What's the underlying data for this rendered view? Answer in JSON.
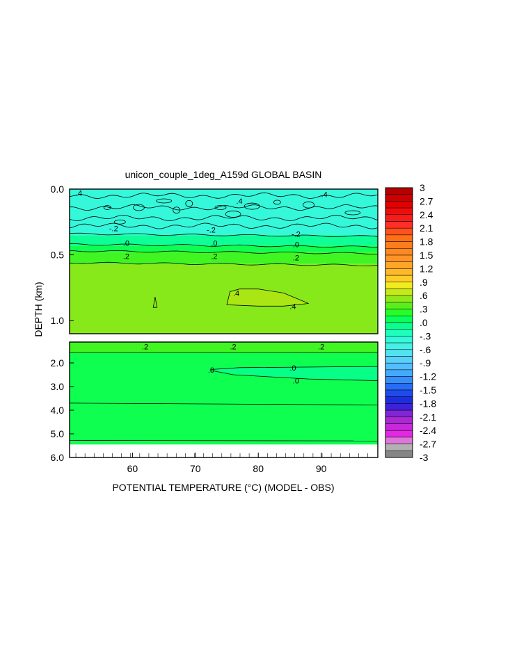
{
  "chart_data": {
    "type": "heatmap",
    "title": "unicon_couple_1deg_A159d GLOBAL BASIN",
    "xlabel": "POTENTIAL TEMPERATURE (°C) (MODEL - OBS)",
    "ylabel": "DEPTH (km)",
    "x_ticks": [
      "60",
      "70",
      "80",
      "90"
    ],
    "x_tick_values": [
      60,
      70,
      80,
      90
    ],
    "xlim": [
      50,
      99
    ],
    "upper_panel": {
      "ylim": [
        0.0,
        1.1
      ],
      "y_ticks": [
        "0.0",
        "0.5",
        "1.0"
      ],
      "y_tick_values": [
        0.0,
        0.5,
        1.0
      ],
      "bands": [
        {
          "from": 0.0,
          "to": 0.35,
          "value": -0.4
        },
        {
          "from": 0.35,
          "to": 0.43,
          "value": -0.1
        },
        {
          "from": 0.43,
          "to": 0.48,
          "value": 0.1
        },
        {
          "from": 0.48,
          "to": 0.57,
          "value": 0.3
        },
        {
          "from": 0.57,
          "to": 1.1,
          "value": 0.5
        }
      ],
      "patch": {
        "value": 0.6,
        "outline": [
          [
            75.5,
            0.78
          ],
          [
            77,
            0.76
          ],
          [
            80,
            0.76
          ],
          [
            84,
            0.79
          ],
          [
            88,
            0.87
          ],
          [
            84,
            0.89
          ],
          [
            80,
            0.89
          ],
          [
            75,
            0.88
          ]
        ]
      },
      "contour_labels": [
        {
          "text": ".4",
          "x": 51.5,
          "y": 0.03
        },
        {
          "text": ".4",
          "x": 77,
          "y": 0.09
        },
        {
          "text": ".4",
          "x": 90.5,
          "y": 0.04
        },
        {
          "text": "-.2",
          "x": 57,
          "y": 0.3
        },
        {
          "text": "-.2",
          "x": 72.5,
          "y": 0.31
        },
        {
          "text": "-.2",
          "x": 86,
          "y": 0.34
        },
        {
          "text": ".0",
          "x": 59,
          "y": 0.41
        },
        {
          "text": ".0",
          "x": 73,
          "y": 0.41
        },
        {
          "text": ".0",
          "x": 86,
          "y": 0.42
        },
        {
          "text": ".2",
          "x": 59,
          "y": 0.51
        },
        {
          "text": ".2",
          "x": 73,
          "y": 0.51
        },
        {
          "text": ".2",
          "x": 86,
          "y": 0.52
        },
        {
          "text": ".4",
          "x": 76.5,
          "y": 0.79
        },
        {
          "text": ".4",
          "x": 85.5,
          "y": 0.89
        }
      ]
    },
    "lower_panel": {
      "ylim": [
        1.1,
        6.0
      ],
      "y_ticks": [
        "2.0",
        "3.0",
        "4.0",
        "5.0",
        "6.0"
      ],
      "y_tick_values": [
        2.0,
        3.0,
        4.0,
        5.0,
        6.0
      ],
      "bands": [
        {
          "from": 1.1,
          "to": 1.55,
          "value": 0.3
        },
        {
          "from": 1.55,
          "to": 5.3,
          "value": 0.1
        },
        {
          "from": 5.3,
          "to": 5.45,
          "value": 0.1
        }
      ],
      "contour_labels": [
        {
          "text": ".2",
          "x": 62,
          "y": 1.3
        },
        {
          "text": ".2",
          "x": 76,
          "y": 1.3
        },
        {
          "text": ".2",
          "x": 90,
          "y": 1.3
        },
        {
          "text": ".0",
          "x": 72.5,
          "y": 2.3
        },
        {
          "text": ".0",
          "x": 85.5,
          "y": 2.2
        },
        {
          "text": ".0",
          "x": 86,
          "y": 2.75
        }
      ]
    },
    "colorbar": {
      "labels": [
        "3",
        "2.7",
        "2.4",
        "2.1",
        "1.8",
        "1.5",
        "1.2",
        ".9",
        ".6",
        ".3",
        ".0",
        "-.3",
        "-.6",
        "-.9",
        "-1.2",
        "-1.5",
        "-1.8",
        "-2.1",
        "-2.4",
        "-2.7",
        "-3"
      ],
      "values": [
        3,
        2.7,
        2.4,
        2.1,
        1.8,
        1.5,
        1.2,
        0.9,
        0.6,
        0.3,
        0.0,
        -0.3,
        -0.6,
        -0.9,
        -1.2,
        -1.5,
        -1.8,
        -2.1,
        -2.4,
        -2.7,
        -3
      ],
      "range": [
        -3,
        3
      ],
      "segments": 40
    },
    "grid": false
  }
}
